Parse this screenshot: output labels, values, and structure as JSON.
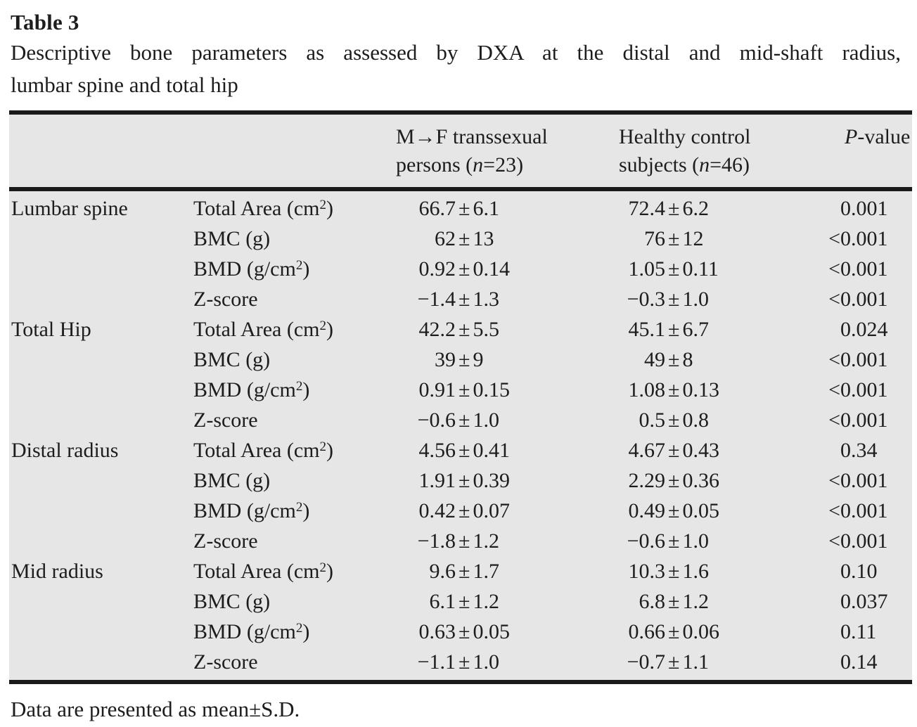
{
  "title": "Table 3",
  "caption_lines": [
    "Descriptive bone parameters as assessed by DXA at the distal and mid-shaft radius,",
    "lumbar spine and total hip"
  ],
  "sym": {
    "pm": "±"
  },
  "header": {
    "mf1": "M→F transsexual",
    "mf2a": "persons (",
    "mf_n": "n",
    "mf2b": "=23)",
    "hc1": "Healthy control",
    "hc2a": "subjects (",
    "hc_n": "n",
    "hc2b": "=46)",
    "p_it": "P",
    "p_rest": "-value"
  },
  "rows": [
    {
      "group": "Lumbar spine",
      "param": "Total Area (cm",
      "sup": "2",
      "close": ")",
      "mf_m": "66.7",
      "mf_sd": "6.1",
      "hc_m": "72.4",
      "hc_sd": "6.2",
      "p_l": "0",
      "p_r": ".001"
    },
    {
      "group": "",
      "param": "BMC (g)",
      "sup": "",
      "close": "",
      "mf_m": "62",
      "mf_sd": "13",
      "hc_m": "76",
      "hc_sd": "12",
      "p_l": "<0",
      "p_r": ".001"
    },
    {
      "group": "",
      "param": "BMD (g/cm",
      "sup": "2",
      "close": ")",
      "mf_m": "0.92",
      "mf_sd": "0.14",
      "hc_m": "1.05",
      "hc_sd": "0.11",
      "p_l": "<0",
      "p_r": ".001"
    },
    {
      "group": "",
      "param": "Z-score",
      "sup": "",
      "close": "",
      "mf_m": "−1.4",
      "mf_sd": "1.3",
      "hc_m": "−0.3",
      "hc_sd": "1.0",
      "p_l": "<0",
      "p_r": ".001"
    },
    {
      "group": "Total Hip",
      "param": "Total Area (cm",
      "sup": "2",
      "close": ")",
      "mf_m": "42.2",
      "mf_sd": "5.5",
      "hc_m": "45.1",
      "hc_sd": "6.7",
      "p_l": "0",
      "p_r": ".024"
    },
    {
      "group": "",
      "param": "BMC (g)",
      "sup": "",
      "close": "",
      "mf_m": "39",
      "mf_sd": "9",
      "hc_m": "49",
      "hc_sd": "8",
      "p_l": "<0",
      "p_r": ".001"
    },
    {
      "group": "",
      "param": "BMD (g/cm",
      "sup": "2",
      "close": ")",
      "mf_m": "0.91",
      "mf_sd": "0.15",
      "hc_m": "1.08",
      "hc_sd": "0.13",
      "p_l": "<0",
      "p_r": ".001"
    },
    {
      "group": "",
      "param": "Z-score",
      "sup": "",
      "close": "",
      "mf_m": "−0.6",
      "mf_sd": "1.0",
      "hc_m": "0.5",
      "hc_sd": "0.8",
      "p_l": "<0",
      "p_r": ".001"
    },
    {
      "group": "Distal radius",
      "param": "Total Area (cm",
      "sup": "2",
      "close": ")",
      "mf_m": "4.56",
      "mf_sd": "0.41",
      "hc_m": "4.67",
      "hc_sd": "0.43",
      "p_l": "0",
      "p_r": ".34"
    },
    {
      "group": "",
      "param": "BMC (g)",
      "sup": "",
      "close": "",
      "mf_m": "1.91",
      "mf_sd": "0.39",
      "hc_m": "2.29",
      "hc_sd": "0.36",
      "p_l": "<0",
      "p_r": ".001"
    },
    {
      "group": "",
      "param": "BMD (g/cm",
      "sup": "2",
      "close": ")",
      "mf_m": "0.42",
      "mf_sd": "0.07",
      "hc_m": "0.49",
      "hc_sd": "0.05",
      "p_l": "<0",
      "p_r": ".001"
    },
    {
      "group": "",
      "param": "Z-score",
      "sup": "",
      "close": "",
      "mf_m": "−1.8",
      "mf_sd": "1.2",
      "hc_m": "−0.6",
      "hc_sd": "1.0",
      "p_l": "<0",
      "p_r": ".001"
    },
    {
      "group": "Mid radius",
      "param": "Total Area (cm",
      "sup": "2",
      "close": ")",
      "mf_m": "9.6",
      "mf_sd": "1.7",
      "hc_m": "10.3",
      "hc_sd": "1.6",
      "p_l": "0",
      "p_r": ".10"
    },
    {
      "group": "",
      "param": "BMC (g)",
      "sup": "",
      "close": "",
      "mf_m": "6.1",
      "mf_sd": "1.2",
      "hc_m": "6.8",
      "hc_sd": "1.2",
      "p_l": "0",
      "p_r": ".037"
    },
    {
      "group": "",
      "param": "BMD (g/cm",
      "sup": "2",
      "close": ")",
      "mf_m": "0.63",
      "mf_sd": "0.05",
      "hc_m": "0.66",
      "hc_sd": "0.06",
      "p_l": "0",
      "p_r": ".11"
    },
    {
      "group": "",
      "param": "Z-score",
      "sup": "",
      "close": "",
      "mf_m": "−1.1",
      "mf_sd": "1.0",
      "hc_m": "−0.7",
      "hc_sd": "1.1",
      "p_l": "0",
      "p_r": ".14"
    }
  ],
  "footnote": "Data are presented as mean±S.D."
}
